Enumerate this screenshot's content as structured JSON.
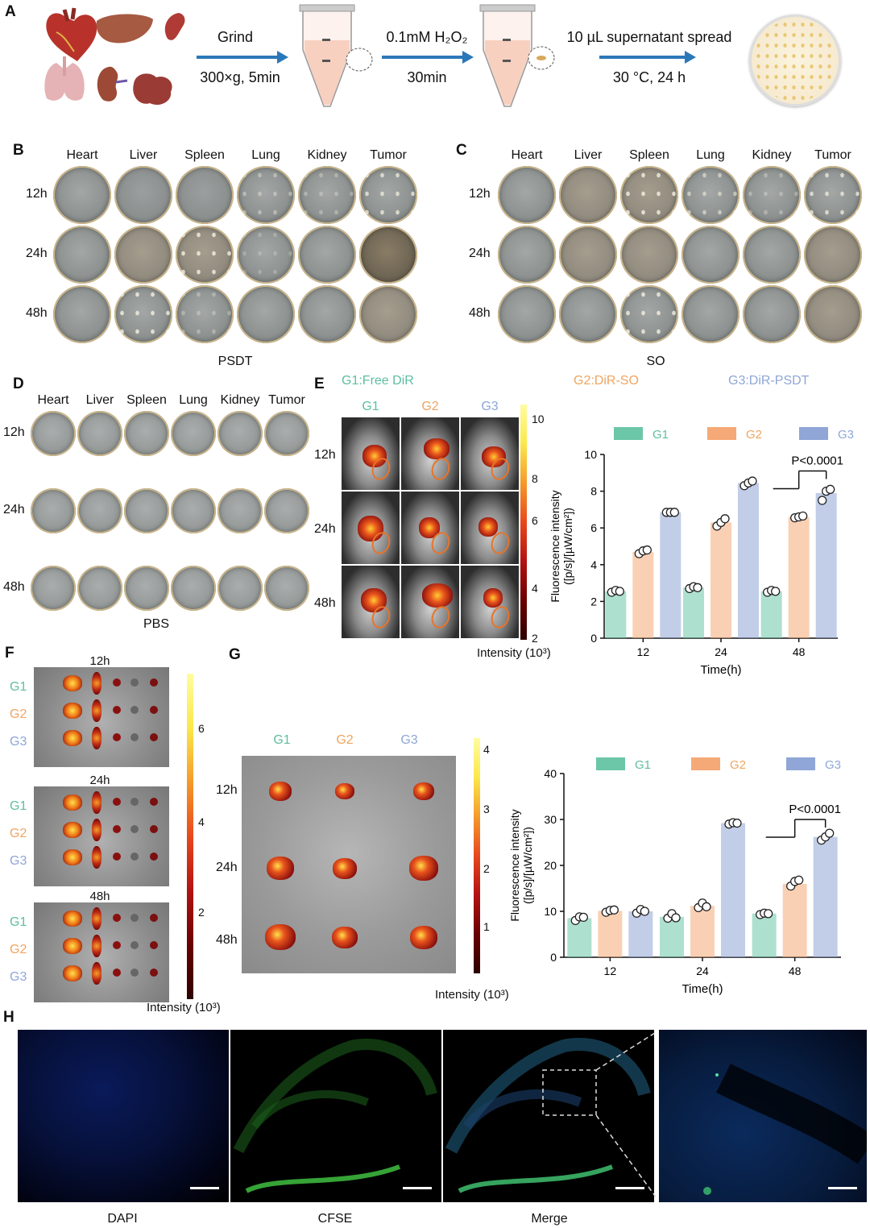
{
  "panel_a": {
    "label": "A",
    "step1_top": "Grind",
    "step1_bottom": "300×g, 5min",
    "step2_top": "0.1mM H₂O₂",
    "step2_bottom": "30min",
    "step3_top": "10 µL supernatant spread",
    "step3_bottom": "30 °C, 24 h"
  },
  "panel_b": {
    "label": "B",
    "columns": [
      "Heart",
      "Liver",
      "Spleen",
      "Lung",
      "Kidney",
      "Tumor"
    ],
    "rows": [
      "12h",
      "24h",
      "48h"
    ],
    "caption": "PSDT"
  },
  "panel_c": {
    "label": "C",
    "columns": [
      "Heart",
      "Liver",
      "Spleen",
      "Lung",
      "Kidney",
      "Tumor"
    ],
    "rows": [
      "12h",
      "24h",
      "48h"
    ],
    "caption": "SO"
  },
  "panel_d": {
    "label": "D",
    "columns": [
      "Heart",
      "Liver",
      "Spleen",
      "Lung",
      "Kidney",
      "Tumor"
    ],
    "rows": [
      "12h",
      "24h",
      "48h"
    ],
    "caption": "PBS"
  },
  "panel_e": {
    "label": "E",
    "legend_g1": "G1:Free DiR",
    "legend_g2": "G2:DiR-SO",
    "legend_g3": "G3:DiR-PSDT",
    "col_g1": "G1",
    "col_g2": "G2",
    "col_g3": "G3",
    "rows": [
      "12h",
      "24h",
      "48h"
    ],
    "colorbar_ticks": [
      "10",
      "8",
      "6",
      "4",
      "2"
    ],
    "colorbar_label": "Intensity (10³)"
  },
  "panel_f": {
    "label": "F",
    "times": [
      "12h",
      "24h",
      "48h"
    ],
    "groups": [
      "G1",
      "G2",
      "G3"
    ],
    "colorbar_ticks": [
      "6",
      "4",
      "2"
    ],
    "colorbar_label": "Intensity (10³)"
  },
  "panel_g": {
    "label": "G",
    "cols": [
      "G1",
      "G2",
      "G3"
    ],
    "rows": [
      "12h",
      "24h",
      "48h"
    ],
    "colorbar_ticks": [
      "4",
      "3",
      "2",
      "1"
    ],
    "colorbar_label": "Intensity (10³)"
  },
  "panel_h": {
    "label": "H",
    "captions": [
      "DAPI",
      "CFSE",
      "Merge"
    ]
  },
  "colors": {
    "g1": "#6cc6a8",
    "g2": "#f5a977",
    "g3": "#8fa6d6",
    "g1_text": "#5dbea0",
    "g2_text": "#f0a460",
    "g3_text": "#8fa6d6",
    "arrow": "#2b78b8",
    "ellipse": "#e8742a"
  },
  "chart_data": [
    {
      "type": "bar",
      "id": "E",
      "categories": [
        "12",
        "24",
        "48"
      ],
      "series": [
        {
          "name": "G1",
          "values": [
            2.55,
            2.75,
            2.55
          ],
          "points": [
            [
              2.5,
              2.6,
              2.55
            ],
            [
              2.7,
              2.8,
              2.75
            ],
            [
              2.5,
              2.6,
              2.55
            ]
          ]
        },
        {
          "name": "G2",
          "values": [
            4.7,
            6.3,
            6.6
          ],
          "points": [
            [
              4.6,
              4.75,
              4.8
            ],
            [
              6.1,
              6.3,
              6.5
            ],
            [
              6.55,
              6.6,
              6.65
            ]
          ]
        },
        {
          "name": "G3",
          "values": [
            6.85,
            8.45,
            7.9
          ],
          "points": [
            [
              6.85,
              6.85,
              6.85
            ],
            [
              8.3,
              8.45,
              8.55
            ],
            [
              7.5,
              8.0,
              8.1
            ]
          ]
        }
      ],
      "xlabel": "Time(h)",
      "ylabel": "Fluorescence intensity ([p/s]/[µW/cm²])",
      "ylim": [
        0,
        10
      ],
      "yticks": [
        0,
        2,
        4,
        6,
        8,
        10
      ],
      "annotation": "P<0.0001"
    },
    {
      "type": "bar",
      "id": "G",
      "categories": [
        "12",
        "24",
        "48"
      ],
      "series": [
        {
          "name": "G1",
          "values": [
            8.5,
            8.8,
            9.5
          ],
          "points": [
            [
              8.0,
              8.8,
              8.7
            ],
            [
              8.5,
              9.5,
              8.6
            ],
            [
              9.3,
              9.6,
              9.5
            ]
          ]
        },
        {
          "name": "G2",
          "values": [
            10.1,
            11.2,
            16.0
          ],
          "points": [
            [
              9.8,
              10.2,
              10.3
            ],
            [
              10.8,
              11.8,
              11.0
            ],
            [
              15.5,
              16.5,
              16.8
            ]
          ]
        },
        {
          "name": "G3",
          "values": [
            10.0,
            29.2,
            26.2
          ],
          "points": [
            [
              9.6,
              10.4,
              10.0
            ],
            [
              29.0,
              29.3,
              29.2
            ],
            [
              25.5,
              26.2,
              27.0
            ]
          ]
        }
      ],
      "xlabel": "Time(h)",
      "ylabel": "Fluorescence intensity ([p/s]/[µW/cm²])",
      "ylim": [
        0,
        40
      ],
      "yticks": [
        0,
        10,
        20,
        30,
        40
      ],
      "annotation": "P<0.0001"
    }
  ]
}
